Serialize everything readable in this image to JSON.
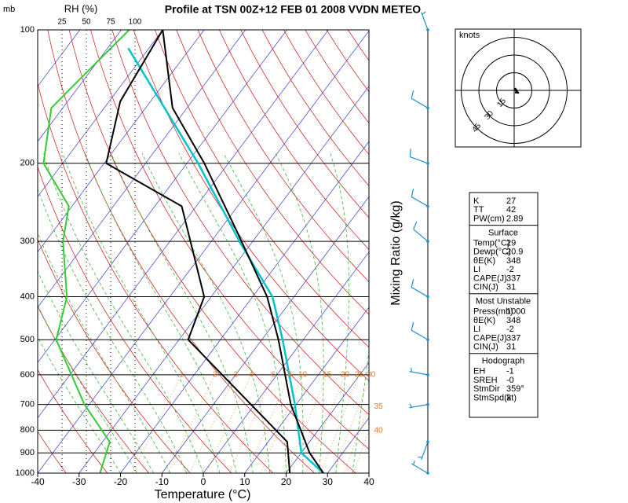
{
  "chart_data": {
    "type": "skewt",
    "title": "Profile at TSN 00Z+12 FEB 01 2008 VVDN METEO",
    "y_label": "mb",
    "x_label": "Temperature (°C)",
    "rh_label": "RH (%)",
    "mixing_label": "Mixing Ratio (g/kg)",
    "xlim": [
      -40,
      40
    ],
    "xticks": [
      -40,
      -30,
      -20,
      -10,
      0,
      10,
      20,
      30,
      40
    ],
    "ylim": [
      1000,
      100
    ],
    "yticks": [
      100,
      200,
      300,
      400,
      500,
      600,
      700,
      800,
      900,
      1000
    ],
    "log_y": true,
    "rh_lim": [
      0,
      100
    ],
    "rh_ticks": [
      25,
      50,
      75,
      100
    ],
    "temperature": {
      "color": "#000000",
      "pressure": [
        1000,
        900,
        700,
        500,
        400,
        280,
        200,
        150,
        100
      ],
      "values": [
        29,
        22,
        8.7,
        -6,
        -16.5,
        -36.6,
        -55.8,
        -73.5,
        -90
      ]
    },
    "dewpoint": {
      "color": "#000000",
      "pressure": [
        1000,
        850,
        500,
        400,
        250,
        200,
        145,
        100
      ],
      "values": [
        20.9,
        14.6,
        -27.8,
        -31.7,
        -53.5,
        -79.5,
        -87.3,
        -90
      ]
    },
    "parcel": {
      "color": "#00c4d0",
      "pressure": [
        1000,
        900,
        700,
        500,
        400,
        300,
        200,
        110
      ],
      "values": [
        29,
        20,
        9.7,
        -5,
        -15.2,
        -33.2,
        -57.3,
        -95
      ]
    },
    "rh": {
      "color": "#33cc33",
      "pressure": [
        1000,
        850,
        700,
        500,
        400,
        300,
        250,
        200,
        150,
        130,
        100
      ],
      "values": [
        64,
        74,
        48,
        19,
        30,
        26,
        32,
        6,
        14,
        42,
        94
      ]
    },
    "mixing_ratio": {
      "color": "#e8902a",
      "values": [
        1,
        2,
        3,
        4,
        6,
        8,
        10,
        15,
        20,
        25,
        30,
        35,
        40
      ]
    },
    "winds": {
      "color": "#1e90c8",
      "pressure": [
        100,
        150,
        200,
        250,
        300,
        400,
        500,
        600,
        700,
        850,
        1000
      ],
      "direction": [
        340,
        300,
        290,
        300,
        310,
        300,
        300,
        280,
        260,
        200,
        300
      ],
      "speed": [
        5,
        10,
        10,
        10,
        10,
        10,
        10,
        5,
        5,
        5,
        5
      ]
    },
    "hodograph": {
      "label": "knots",
      "rings": [
        15,
        30,
        45
      ]
    },
    "indices": {
      "top": [
        [
          "K",
          27
        ],
        [
          "TT",
          42
        ],
        [
          "PW(cm)",
          2.89
        ]
      ],
      "sections": [
        {
          "title": "Surface",
          "rows": [
            [
              "Temp(°C)",
              29
            ],
            [
              "Dewp(°C)",
              20.9
            ],
            [
              "θE(K)",
              348
            ],
            [
              "LI",
              -2
            ],
            [
              "CAPE(J)",
              337
            ],
            [
              "CIN(J)",
              31
            ]
          ]
        },
        {
          "title": "Most Unstable",
          "rows": [
            [
              "Press(mb)",
              1000
            ],
            [
              "θE(K)",
              348
            ],
            [
              "LI",
              -2
            ],
            [
              "CAPE(J)",
              337
            ],
            [
              "CIN(J)",
              31
            ]
          ]
        },
        {
          "title": "Hodograph",
          "rows": [
            [
              "EH",
              -1
            ],
            [
              "SREH",
              "-0"
            ],
            [
              "StmDir",
              "359°"
            ],
            [
              "StmSpd(kt)",
              3
            ]
          ]
        }
      ]
    }
  }
}
